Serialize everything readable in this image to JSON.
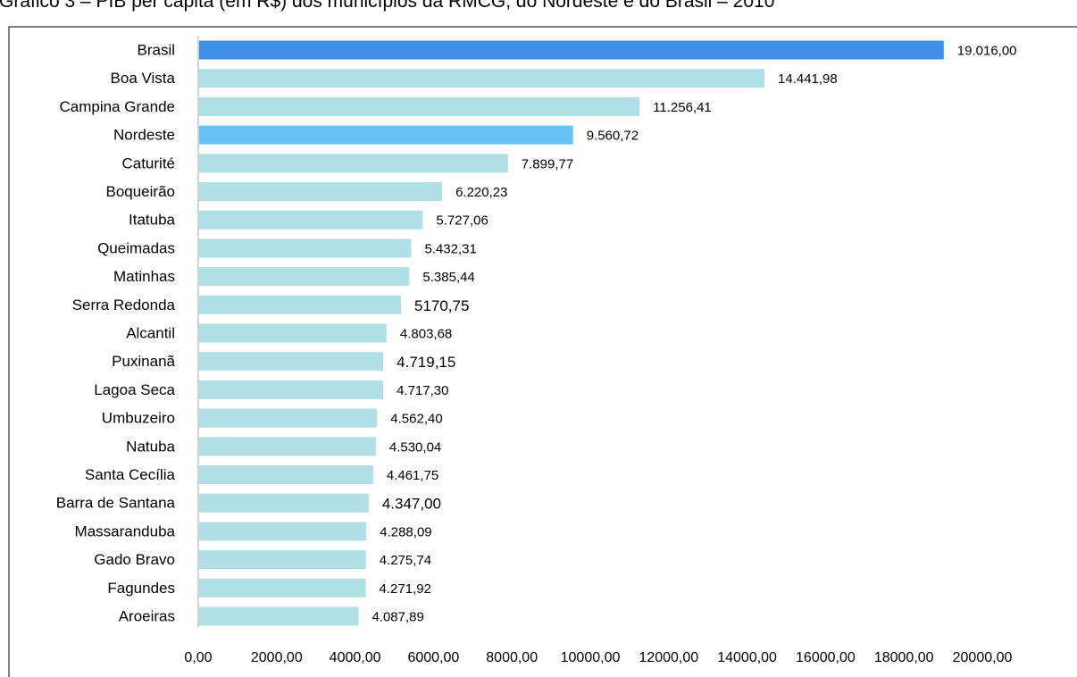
{
  "chart_data": {
    "type": "bar",
    "orientation": "horizontal",
    "title": "Gráfico 3 – PIB per capita (em R$) dos municípios da RMCG, do Nordeste e do Brasil – 2010",
    "xlabel": "",
    "ylabel": "",
    "xlim": [
      0,
      20000
    ],
    "grid": false,
    "legend": "none",
    "categories": [
      "Brasil",
      "Boa Vista",
      "Campina Grande",
      "Nordeste",
      "Caturité",
      "Boqueirão",
      "Itatuba",
      "Queimadas",
      "Matinhas",
      "Serra Redonda",
      "Alcantil",
      "Puxinanã",
      "Lagoa Seca",
      "Umbuzeiro",
      "Natuba",
      "Santa Cecília",
      "Barra de Santana",
      "Massaranduba",
      "Gado Bravo",
      "Fagundes",
      "Aroeiras"
    ],
    "values": [
      19016.0,
      14441.98,
      11256.41,
      9560.72,
      7899.77,
      6220.23,
      5727.06,
      5432.31,
      5385.44,
      5170.75,
      4803.68,
      4719.15,
      4717.3,
      4562.4,
      4530.04,
      4461.75,
      4347.0,
      4288.09,
      4275.74,
      4271.92,
      4087.89
    ],
    "data_labels": [
      "19.016,00",
      "14.441,98",
      "11.256,41",
      "9.560,72",
      "7.899,77",
      "6.220,23",
      "5.727,06",
      "5.432,31",
      "5.385,44",
      "5170,75",
      "4.803,68",
      "4.719,15",
      "4.717,30",
      "4.562,40",
      "4.530,04",
      "4.461,75",
      "4.347,00",
      "4.288,09",
      "4.275,74",
      "4.271,92",
      "4.087,89"
    ],
    "tick_values": [
      0,
      2000,
      4000,
      6000,
      8000,
      10000,
      12000,
      14000,
      16000,
      18000,
      20000
    ],
    "tick_labels": [
      "0,00",
      "2000,00",
      "4000,00",
      "6000,00",
      "8000,00",
      "10000,00",
      "12000,00",
      "14000,00",
      "16000,00",
      "18000,00",
      "20000,00"
    ],
    "bar_colors": [
      "#3f8fea",
      "#b0dfe5",
      "#b0dfe5",
      "#66c2f5",
      "#b0dfe5",
      "#b0dfe5",
      "#b0dfe5",
      "#b0dfe5",
      "#b0dfe5",
      "#b0dfe5",
      "#b0dfe5",
      "#b0dfe5",
      "#b0dfe5",
      "#b0dfe5",
      "#b0dfe5",
      "#b0dfe5",
      "#b0dfe5",
      "#b0dfe5",
      "#b0dfe5",
      "#b0dfe5",
      "#b0dfe5"
    ],
    "axis_color": "#a6a6a6"
  }
}
